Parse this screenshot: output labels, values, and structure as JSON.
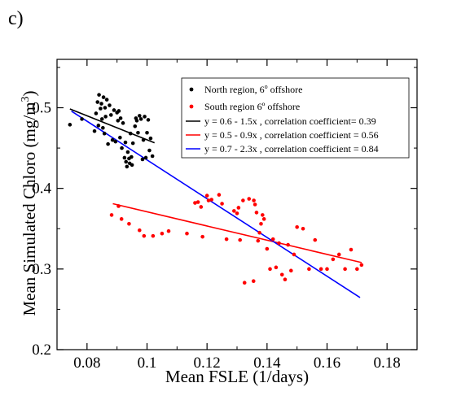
{
  "panel_label": "c)",
  "colors": {
    "north": "#000000",
    "south": "#ff0000",
    "fit_north": "#000000",
    "fit_south": "#ff0000",
    "fit_all": "#0000ff"
  },
  "chart_data": {
    "type": "scatter",
    "xlabel": "Mean FSLE (1/days)",
    "ylabel_main": "Mean Simulated Chloro (mg/m",
    "ylabel_exp": "3",
    "ylabel_close": ")",
    "xlim": [
      0.07,
      0.19
    ],
    "ylim": [
      0.2,
      0.56
    ],
    "xticks": [
      0.08,
      0.1,
      0.12,
      0.14,
      0.16,
      0.18
    ],
    "xtick_labels": [
      "0.08",
      "0.1",
      "0.12",
      "0.14",
      "0.16",
      "0.18"
    ],
    "yticks": [
      0.2,
      0.3,
      0.4,
      0.5
    ],
    "ytick_labels": [
      "0.2",
      "0.3",
      "0.4",
      "0.5"
    ],
    "legend_position": "top-right",
    "series": [
      {
        "name_main": "North region, 6",
        "name_deg": "o",
        "name_rest": " offshore",
        "color": "#000000",
        "points": [
          [
            0.0743,
            0.479
          ],
          [
            0.0783,
            0.486
          ],
          [
            0.0825,
            0.471
          ],
          [
            0.083,
            0.493
          ],
          [
            0.0835,
            0.507
          ],
          [
            0.0838,
            0.478
          ],
          [
            0.084,
            0.516
          ],
          [
            0.0845,
            0.499
          ],
          [
            0.0848,
            0.505
          ],
          [
            0.085,
            0.486
          ],
          [
            0.0853,
            0.475
          ],
          [
            0.0855,
            0.513
          ],
          [
            0.0858,
            0.468
          ],
          [
            0.086,
            0.5
          ],
          [
            0.0862,
            0.489
          ],
          [
            0.0866,
            0.51
          ],
          [
            0.087,
            0.455
          ],
          [
            0.0875,
            0.503
          ],
          [
            0.088,
            0.491
          ],
          [
            0.0885,
            0.46
          ],
          [
            0.089,
            0.497
          ],
          [
            0.0895,
            0.458
          ],
          [
            0.09,
            0.494
          ],
          [
            0.0903,
            0.484
          ],
          [
            0.0906,
            0.496
          ],
          [
            0.091,
            0.463
          ],
          [
            0.0912,
            0.487
          ],
          [
            0.0916,
            0.45
          ],
          [
            0.092,
            0.481
          ],
          [
            0.0925,
            0.438
          ],
          [
            0.0928,
            0.457
          ],
          [
            0.093,
            0.433
          ],
          [
            0.0933,
            0.427
          ],
          [
            0.0936,
            0.445
          ],
          [
            0.094,
            0.437
          ],
          [
            0.0942,
            0.431
          ],
          [
            0.0945,
            0.468
          ],
          [
            0.0948,
            0.439
          ],
          [
            0.095,
            0.429
          ],
          [
            0.0953,
            0.456
          ],
          [
            0.096,
            0.477
          ],
          [
            0.0963,
            0.487
          ],
          [
            0.0966,
            0.484
          ],
          [
            0.097,
            0.469
          ],
          [
            0.0975,
            0.49
          ],
          [
            0.098,
            0.486
          ],
          [
            0.0985,
            0.436
          ],
          [
            0.0988,
            0.46
          ],
          [
            0.0992,
            0.489
          ],
          [
            0.0996,
            0.438
          ],
          [
            0.1,
            0.469
          ],
          [
            0.1004,
            0.485
          ],
          [
            0.1008,
            0.447
          ],
          [
            0.1012,
            0.462
          ],
          [
            0.1018,
            0.44
          ]
        ]
      },
      {
        "name": "South region 6º offshore",
        "color": "#ff0000",
        "points": [
          [
            0.0882,
            0.367
          ],
          [
            0.0905,
            0.378
          ],
          [
            0.0915,
            0.362
          ],
          [
            0.094,
            0.356
          ],
          [
            0.0975,
            0.348
          ],
          [
            0.099,
            0.341
          ],
          [
            0.102,
            0.341
          ],
          [
            0.105,
            0.344
          ],
          [
            0.1072,
            0.347
          ],
          [
            0.1133,
            0.344
          ],
          [
            0.116,
            0.382
          ],
          [
            0.117,
            0.383
          ],
          [
            0.118,
            0.377
          ],
          [
            0.1185,
            0.34
          ],
          [
            0.12,
            0.391
          ],
          [
            0.1205,
            0.385
          ],
          [
            0.1215,
            0.386
          ],
          [
            0.124,
            0.392
          ],
          [
            0.125,
            0.381
          ],
          [
            0.1265,
            0.337
          ],
          [
            0.129,
            0.372
          ],
          [
            0.13,
            0.369
          ],
          [
            0.1305,
            0.376
          ],
          [
            0.131,
            0.336
          ],
          [
            0.132,
            0.385
          ],
          [
            0.1325,
            0.283
          ],
          [
            0.134,
            0.387
          ],
          [
            0.1355,
            0.285
          ],
          [
            0.1356,
            0.385
          ],
          [
            0.136,
            0.38
          ],
          [
            0.1365,
            0.37
          ],
          [
            0.137,
            0.335
          ],
          [
            0.1375,
            0.345
          ],
          [
            0.138,
            0.356
          ],
          [
            0.1385,
            0.367
          ],
          [
            0.139,
            0.362
          ],
          [
            0.14,
            0.325
          ],
          [
            0.141,
            0.3
          ],
          [
            0.142,
            0.337
          ],
          [
            0.143,
            0.302
          ],
          [
            0.144,
            0.332
          ],
          [
            0.145,
            0.293
          ],
          [
            0.146,
            0.287
          ],
          [
            0.147,
            0.33
          ],
          [
            0.148,
            0.298
          ],
          [
            0.149,
            0.318
          ],
          [
            0.15,
            0.352
          ],
          [
            0.152,
            0.35
          ],
          [
            0.154,
            0.3
          ],
          [
            0.156,
            0.336
          ],
          [
            0.158,
            0.3
          ],
          [
            0.16,
            0.3
          ],
          [
            0.162,
            0.312
          ],
          [
            0.164,
            0.318
          ],
          [
            0.166,
            0.3
          ],
          [
            0.168,
            0.324
          ],
          [
            0.17,
            0.3
          ],
          [
            0.1715,
            0.305
          ]
        ]
      }
    ],
    "fits": [
      {
        "label": "y = 0.6 - 1.5x ,  correlation coefficient= 0.39",
        "color": "#000000",
        "x0": 0.0743,
        "y0": 0.4985,
        "x1": 0.1025,
        "y1": 0.4565
      },
      {
        "label": "y = 0.5 - 0.9x , correlation coefficient = 0.56",
        "color": "#ff0000",
        "x0": 0.0886,
        "y0": 0.381,
        "x1": 0.1715,
        "y1": 0.308
      },
      {
        "label": "y = 0.7 - 2.3x , correlation coefficient = 0.84",
        "color": "#0000ff",
        "x0": 0.0748,
        "y0": 0.4958,
        "x1": 0.171,
        "y1": 0.2646
      }
    ]
  }
}
